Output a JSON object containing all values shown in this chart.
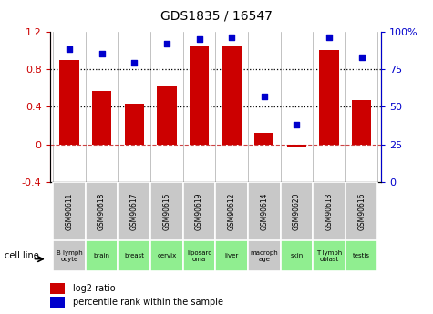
{
  "title": "GDS1835 / 16547",
  "samples": [
    "GSM90611",
    "GSM90618",
    "GSM90617",
    "GSM90615",
    "GSM90619",
    "GSM90612",
    "GSM90614",
    "GSM90620",
    "GSM90613",
    "GSM90616"
  ],
  "cell_lines": [
    "B lymph\nocyte",
    "brain",
    "breast",
    "cervix",
    "liposarc\noma",
    "liver",
    "macroph\nage",
    "skin",
    "T lymph\noblast",
    "testis"
  ],
  "cell_colors": [
    "#c8c8c8",
    "#90ee90",
    "#90ee90",
    "#90ee90",
    "#90ee90",
    "#90ee90",
    "#c8c8c8",
    "#90ee90",
    "#90ee90",
    "#90ee90"
  ],
  "log2_ratio": [
    0.9,
    0.57,
    0.43,
    0.62,
    1.05,
    1.05,
    0.12,
    -0.02,
    1.0,
    0.47
  ],
  "percentile_rank": [
    88,
    85,
    79,
    92,
    95,
    96,
    57,
    38,
    96,
    83
  ],
  "bar_color": "#cc0000",
  "dot_color": "#0000cc",
  "ylim_left": [
    -0.4,
    1.2
  ],
  "ylim_right": [
    0,
    100
  ],
  "yticks_left": [
    -0.4,
    0.0,
    0.4,
    0.8,
    1.2
  ],
  "yticks_right": [
    0,
    25,
    50,
    75,
    100
  ],
  "hline_y": [
    0.4,
    0.8
  ],
  "zero_line_y": 0.0,
  "legend_red": "log2 ratio",
  "legend_blue": "percentile rank within the sample",
  "cell_line_label": "cell line",
  "sample_bg_color": "#c8c8c8",
  "zero_line_color": "#cc4444"
}
